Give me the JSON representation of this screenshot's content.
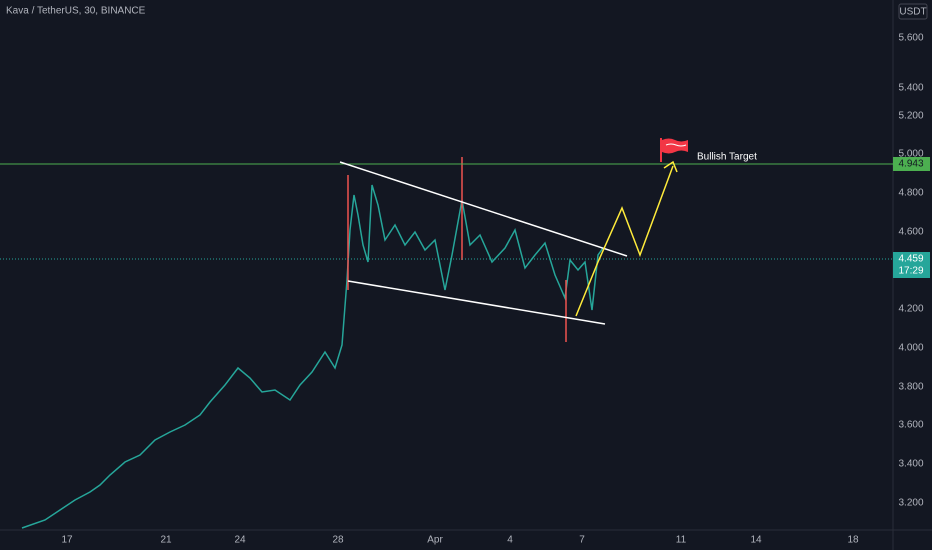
{
  "header": {
    "symbol": "Kava / TetherUS, 30, BINANCE",
    "currency": "USDT"
  },
  "price_axis": [
    "5.600",
    "5.400",
    "5.200",
    "5.000",
    "4.800",
    "4.600",
    "4.200",
    "4.000",
    "3.800",
    "3.600",
    "3.400",
    "3.200"
  ],
  "price_tags": {
    "target": "4.943",
    "last": "4.459",
    "countdown": "17:29"
  },
  "time_axis": [
    "17",
    "21",
    "24",
    "28",
    "Apr",
    "4",
    "7",
    "11",
    "14",
    "18"
  ],
  "annotation": "Bullish Target"
}
